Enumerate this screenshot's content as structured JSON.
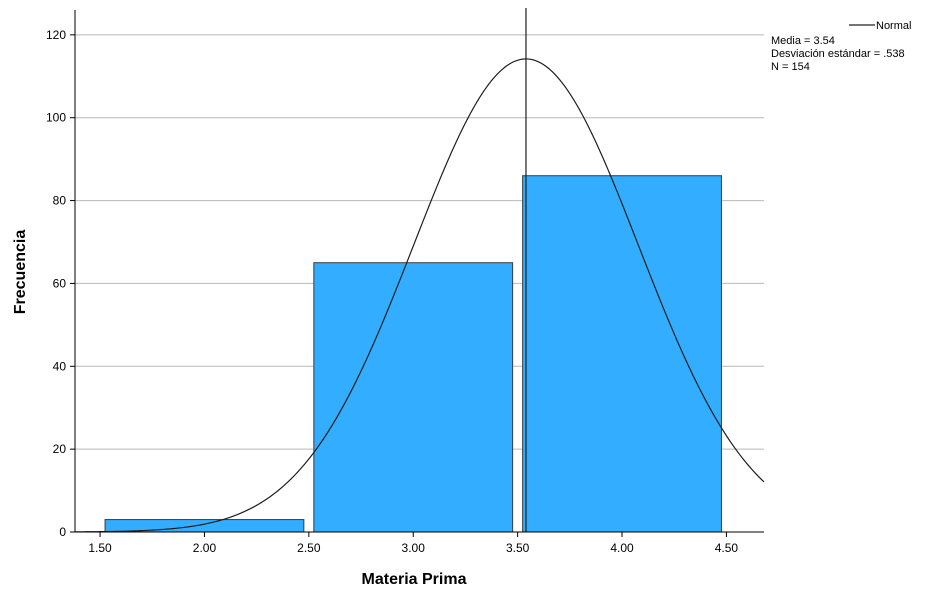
{
  "chart_data": {
    "type": "bar",
    "subtype": "histogram-with-normal-curve",
    "title": "",
    "xlabel": "Materia Prima",
    "ylabel": "Frecuencia",
    "xlim": [
      1.38,
      4.68
    ],
    "ylim": [
      0,
      126
    ],
    "x_ticks": [
      1.5,
      2.0,
      2.5,
      3.0,
      3.5,
      4.0,
      4.5
    ],
    "x_tick_labels": [
      "1.50",
      "2.00",
      "2.50",
      "3.00",
      "3.50",
      "4.00",
      "4.50"
    ],
    "y_ticks": [
      0,
      20,
      40,
      60,
      80,
      100,
      120
    ],
    "y_tick_labels": [
      "0",
      "20",
      "40",
      "60",
      "80",
      "100",
      "120"
    ],
    "bins": [
      {
        "x0": 1.5,
        "x1": 2.5,
        "value": 3
      },
      {
        "x0": 2.5,
        "x1": 3.5,
        "value": 65
      },
      {
        "x0": 3.5,
        "x1": 4.5,
        "value": 86
      }
    ],
    "bar_color": "#33adff",
    "bar_stroke": "#3a3a3a",
    "grid": "horizontal",
    "mean_line_x": 3.54,
    "normal_curve": {
      "mean": 3.54,
      "std": 0.538,
      "n": 154,
      "bin_width": 1.0
    },
    "legend": {
      "position": "top-right",
      "series_name": "Normal",
      "stats": [
        "Media = 3.54",
        "Desviación estándar = .538",
        "N = 154"
      ]
    }
  }
}
